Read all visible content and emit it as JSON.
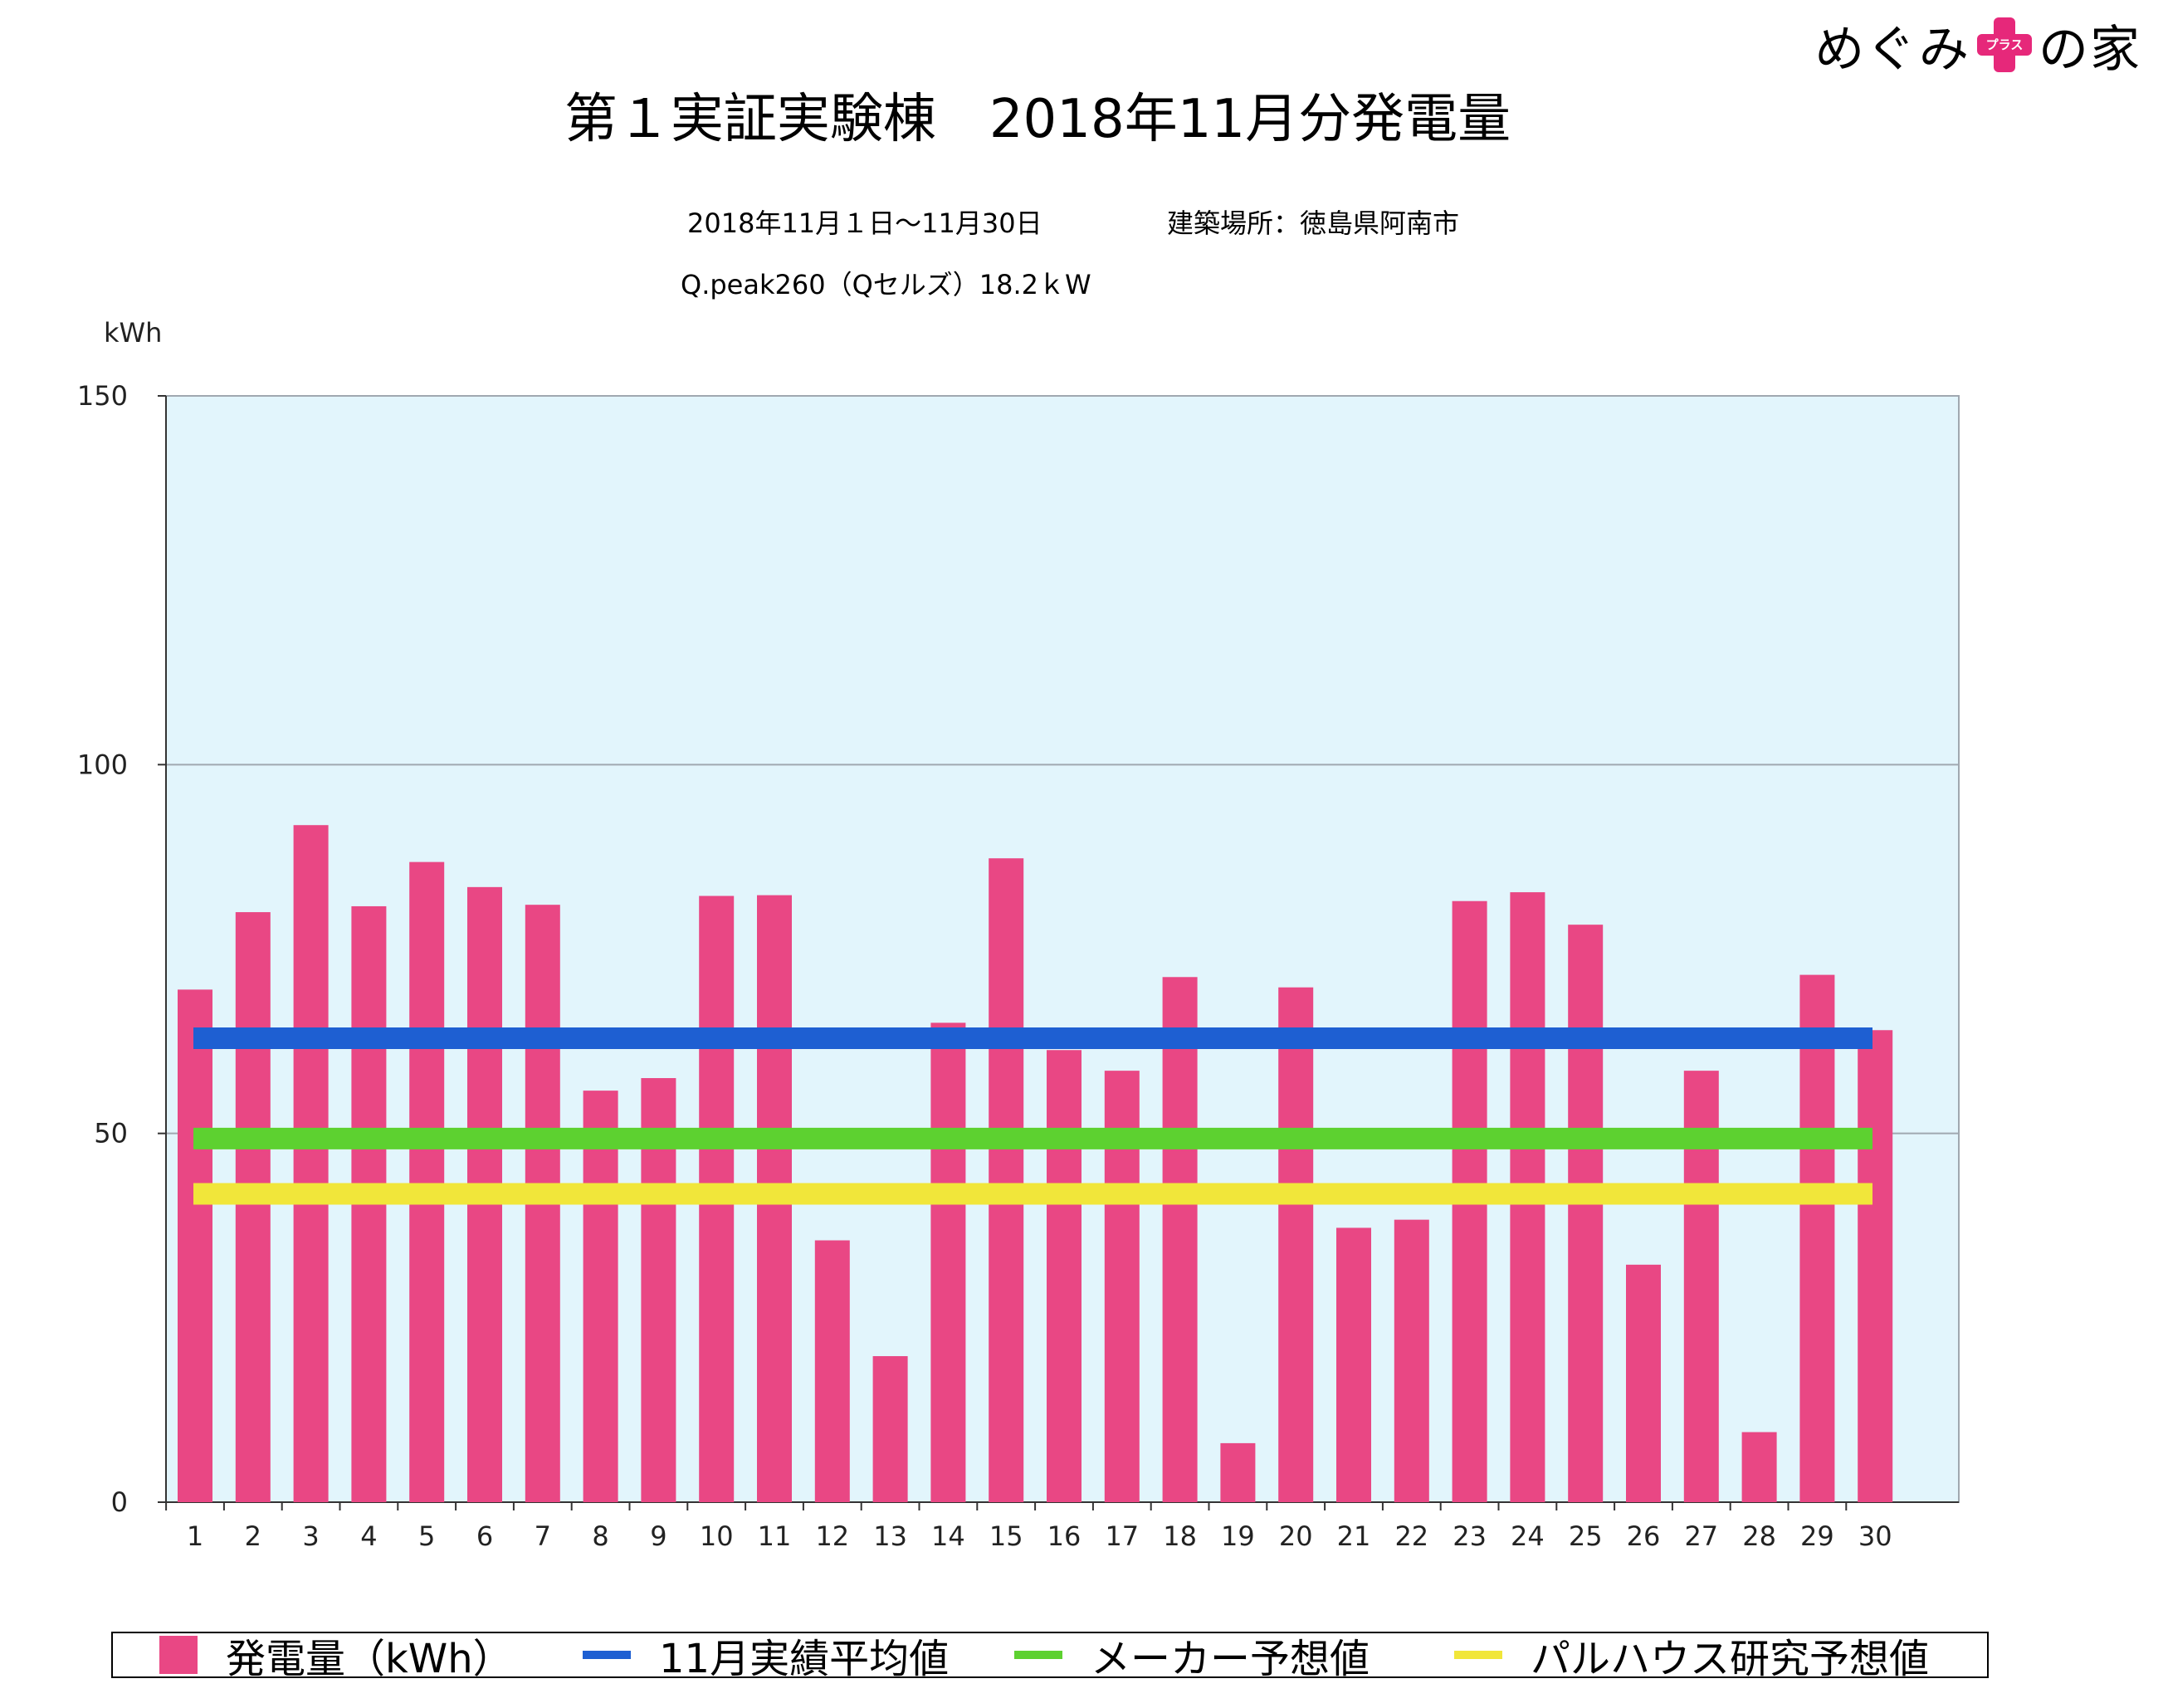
{
  "logo": {
    "left_text": "めぐみ",
    "plus_text": "プラス",
    "right_text": "の家"
  },
  "title": "第１実証実験棟　2018年11月分発電量",
  "subtitle": {
    "period": "2018年11月１日〜11月30日",
    "location": "建築場所：徳島県阿南市",
    "panel": "Q.peak260（Qセルズ）18.2ｋW"
  },
  "chart_data": {
    "type": "bar",
    "title": "第１実証実験棟　2018年11月分発電量",
    "ylabel": "kWh",
    "xlabel": "",
    "ylim": [
      0,
      150
    ],
    "yticks": [
      0,
      50,
      100,
      150
    ],
    "grid": true,
    "legend_position": "bottom",
    "categories": [
      "1",
      "2",
      "3",
      "4",
      "5",
      "6",
      "7",
      "8",
      "9",
      "10",
      "11",
      "12",
      "13",
      "14",
      "15",
      "16",
      "17",
      "18",
      "19",
      "20",
      "21",
      "22",
      "23",
      "24",
      "25",
      "26",
      "27",
      "28",
      "29",
      "30"
    ],
    "series": [
      {
        "name": "発電量（kWh）",
        "type": "bar",
        "values": [
          69.5,
          80,
          91.8,
          80.8,
          86.8,
          83.4,
          81,
          55.8,
          57.5,
          82.2,
          82.3,
          35.5,
          19.8,
          65,
          87.3,
          61.3,
          58.5,
          71.2,
          8,
          69.8,
          37.2,
          38.3,
          81.5,
          82.7,
          78.3,
          32.2,
          58.5,
          9.5,
          71.5,
          64
        ]
      },
      {
        "name": "11月実績平均値",
        "type": "line",
        "value": 62.9
      },
      {
        "name": "メーカー予想値",
        "type": "line",
        "value": 49.3
      },
      {
        "name": "パルハウス研究予想値",
        "type": "line",
        "value": 41.8
      }
    ],
    "colors": {
      "bar": "#e94784",
      "avg": "#1e5fd2",
      "maker": "#5dd130",
      "research": "#f1e63a",
      "plot_bg": "#e2f5fc",
      "grid": "#a0a8b0"
    }
  },
  "legend": [
    {
      "label": "発電量（kWh）",
      "kind": "box",
      "color": "#e94784"
    },
    {
      "label": "11月実績平均値",
      "kind": "line",
      "color": "#1e5fd2"
    },
    {
      "label": "メーカー予想値",
      "kind": "line",
      "color": "#5dd130"
    },
    {
      "label": "パルハウス研究予想値",
      "kind": "line",
      "color": "#f1e63a"
    }
  ]
}
